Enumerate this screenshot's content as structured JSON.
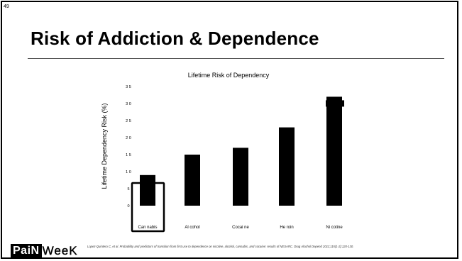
{
  "slide": {
    "number": "49",
    "title": "Risk of Addiction & Dependence"
  },
  "chart_data": {
    "type": "bar",
    "title": "Lifetime Risk of Dependency",
    "ylabel": "Lifetime Dependency Risk (%)",
    "xlabel": "",
    "categories": [
      "Cannabis",
      "Alcohol",
      "Cocaine",
      "Heroin",
      "Nicotine"
    ],
    "category_labels": [
      "Can nabis",
      "Al cohol",
      "Cocai ne",
      "He roin",
      "Ni cotine"
    ],
    "values": [
      9,
      15,
      17,
      23,
      32
    ],
    "ylim": [
      0,
      35
    ],
    "yticks": [
      0,
      5,
      10,
      15,
      20,
      25,
      30,
      35
    ],
    "ytick_labels": [
      "0",
      "5",
      "1 0",
      "1 5",
      "2 0",
      "2 5",
      "3 0",
      "3 5"
    ],
    "highlighted_category": "Cannabis",
    "grid": false,
    "bar_color": "#000000"
  },
  "footer": {
    "logo_part1": "PaiN",
    "logo_part2": "WeeK",
    "citation": "Lopez-Quintero C, et al. Probability and predictors of transition from first use to dependence on nicotine, alcohol, cannabis, and cocaine: results of NESARC. Drug Alcohol Depend 2011;115(1-2):120-130."
  }
}
